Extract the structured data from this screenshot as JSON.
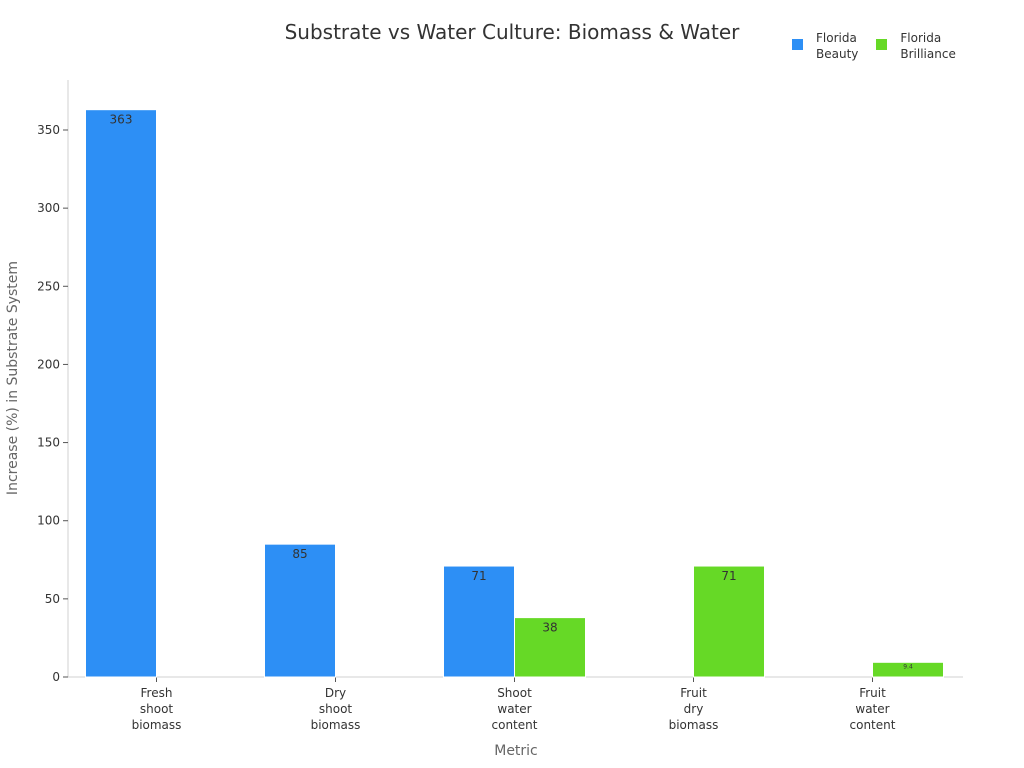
{
  "chart_data": {
    "type": "bar",
    "title": "Substrate vs Water Culture: Biomass & Water",
    "xlabel": "Metric",
    "ylabel": "Increase (%) in Substrate System",
    "categories": [
      "Fresh shoot biomass",
      "Dry shoot biomass",
      "Shoot water content",
      "Fruit dry biomass",
      "Fruit water content"
    ],
    "category_lines": [
      [
        "Fresh",
        "shoot",
        "biomass"
      ],
      [
        "Dry",
        "shoot",
        "biomass"
      ],
      [
        "Shoot",
        "water",
        "content"
      ],
      [
        "Fruit",
        "dry",
        "biomass"
      ],
      [
        "Fruit",
        "water",
        "content"
      ]
    ],
    "series": [
      {
        "name": "Florida Beauty",
        "legend_lines": [
          "Florida",
          "Beauty"
        ],
        "color": "#2d8ff5",
        "values": [
          363,
          85,
          71,
          null,
          null
        ]
      },
      {
        "name": "Florida Brilliance",
        "legend_lines": [
          "Florida",
          "Brilliance"
        ],
        "color": "#66d926",
        "values": [
          null,
          null,
          38,
          71,
          9.4
        ]
      }
    ],
    "yticks": [
      0,
      50,
      100,
      150,
      200,
      250,
      300,
      350
    ],
    "ylim": [
      0,
      382
    ],
    "grid": false,
    "legend_position": "top-right"
  }
}
